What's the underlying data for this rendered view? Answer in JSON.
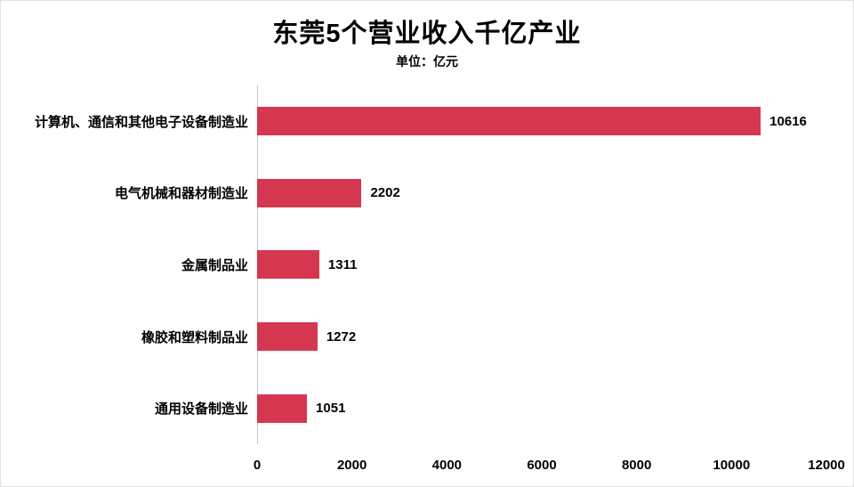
{
  "title": "东莞5个营业收入千亿产业",
  "subtitle": "单位：亿元",
  "chart_data": {
    "type": "bar",
    "orientation": "horizontal",
    "title": "东莞5个营业收入千亿产业",
    "subtitle": "单位：亿元",
    "categories": [
      "计算机、通信和其他电子设备制造业",
      "电气机械和器材制造业",
      "金属制品业",
      "橡胶和塑料制品业",
      "通用设备制造业"
    ],
    "values": [
      10616,
      2202,
      1311,
      1272,
      1051
    ],
    "value_labels": [
      "10616",
      "2202",
      "1311",
      "1272",
      "1051"
    ],
    "xlabel": "",
    "ylabel": "",
    "xlim": [
      0,
      12000
    ],
    "xticks": [
      0,
      2000,
      4000,
      6000,
      8000,
      10000,
      12000
    ],
    "bar_color": "#d63750",
    "grid": false,
    "legend": false
  }
}
